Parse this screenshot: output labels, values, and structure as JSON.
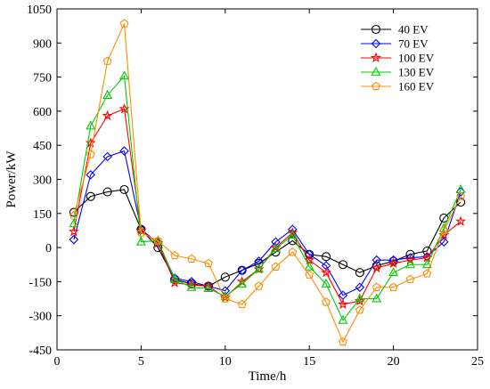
{
  "chart_data": {
    "type": "line",
    "title": "",
    "xlabel": "Time/h",
    "ylabel": "Power/kW",
    "xlim": [
      0,
      25
    ],
    "ylim": [
      -450,
      1050
    ],
    "xticks": [
      0,
      5,
      10,
      15,
      20,
      25
    ],
    "yticks": [
      -450,
      -300,
      -150,
      0,
      150,
      300,
      450,
      600,
      750,
      900,
      1050
    ],
    "grid": false,
    "legend_position": "top-right",
    "x": [
      1,
      2,
      3,
      4,
      5,
      6,
      7,
      8,
      9,
      10,
      11,
      12,
      13,
      14,
      15,
      16,
      17,
      18,
      19,
      20,
      21,
      22,
      23,
      24
    ],
    "series": [
      {
        "name": "40 EV",
        "color": "#000000",
        "marker": "circle",
        "values": [
          155,
          225,
          245,
          255,
          80,
          0,
          -140,
          -160,
          -170,
          -130,
          -100,
          -70,
          -20,
          30,
          -30,
          -40,
          -75,
          -110,
          -80,
          -60,
          -30,
          -15,
          130,
          200
        ]
      },
      {
        "name": "70 EV",
        "color": "#0000ff",
        "marker": "diamond",
        "values": [
          35,
          320,
          400,
          425,
          80,
          20,
          -135,
          -150,
          -170,
          -190,
          -100,
          -60,
          25,
          80,
          -30,
          -80,
          -210,
          -175,
          -55,
          -55,
          -45,
          -40,
          25,
          245
        ]
      },
      {
        "name": "100 EV",
        "color": "#ff0000",
        "marker": "star",
        "values": [
          70,
          460,
          580,
          610,
          75,
          20,
          -155,
          -165,
          -170,
          -220,
          -150,
          -95,
          0,
          65,
          -55,
          -110,
          -250,
          -235,
          -90,
          -70,
          -55,
          -45,
          55,
          115
        ]
      },
      {
        "name": "130 EV",
        "color": "#00cc00",
        "marker": "triangle",
        "values": [
          105,
          535,
          670,
          755,
          25,
          30,
          -140,
          -175,
          -180,
          -215,
          -160,
          -95,
          -5,
          55,
          -85,
          -160,
          -320,
          -225,
          -225,
          -110,
          -75,
          -75,
          85,
          255
        ]
      },
      {
        "name": "160 EV",
        "color": "#ff8c00",
        "marker": "pentagon",
        "values": [
          140,
          410,
          820,
          985,
          65,
          30,
          -35,
          -50,
          -70,
          -225,
          -250,
          -170,
          -85,
          -20,
          -120,
          -240,
          -415,
          -275,
          -175,
          -175,
          -140,
          -115,
          75,
          225
        ]
      }
    ]
  }
}
